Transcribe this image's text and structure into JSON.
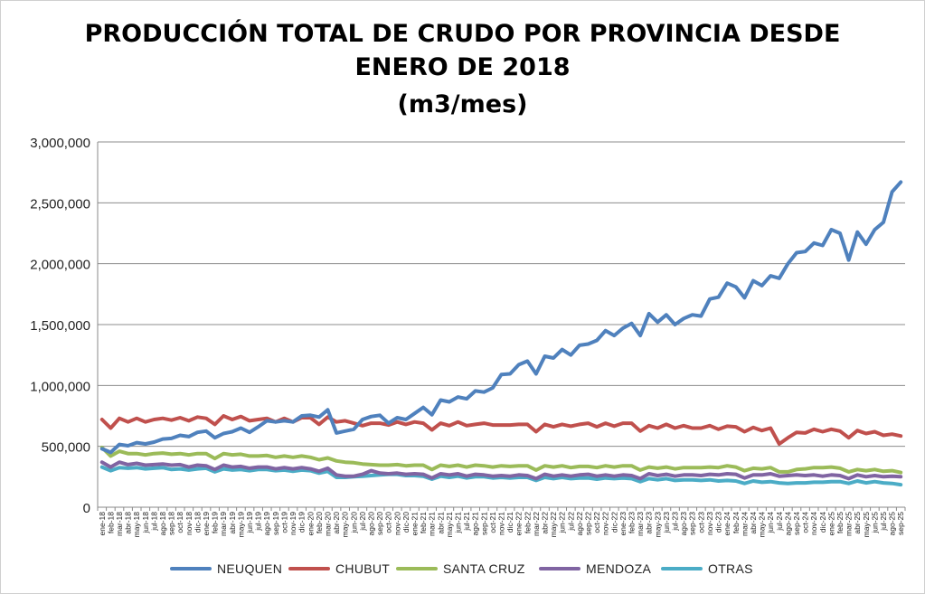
{
  "chart_data": {
    "type": "line",
    "title_lines": [
      "PRODUCCIÓN TOTAL DE CRUDO POR PROVINCIA DESDE",
      "ENERO DE 2018",
      "(m3/mes)"
    ],
    "ylim": [
      0,
      3000000
    ],
    "yticks": [
      "0",
      "500,000",
      "1,000,000",
      "1,500,000",
      "2,000,000",
      "2,500,000",
      "3,000,000"
    ],
    "grid": "horizontal",
    "legend": "bottom",
    "categories": [
      "ene-18",
      "feb-18",
      "mar-18",
      "abr-18",
      "may-18",
      "jun-18",
      "jul-18",
      "ago-18",
      "sep-18",
      "oct-18",
      "nov-18",
      "dic-18",
      "ene-19",
      "feb-19",
      "mar-19",
      "abr-19",
      "may-19",
      "jun-19",
      "jul-19",
      "ago-19",
      "sep-19",
      "oct-19",
      "nov-19",
      "dic-19",
      "ene-20",
      "feb-20",
      "mar-20",
      "abr-20",
      "may-20",
      "jun-20",
      "jul-20",
      "ago-20",
      "sep-20",
      "oct-20",
      "nov-20",
      "dic-20",
      "ene-21",
      "feb-21",
      "mar-21",
      "abr-21",
      "may-21",
      "jun-21",
      "jul-21",
      "ago-21",
      "sep-21",
      "oct-21",
      "nov-21",
      "dic-21",
      "ene-22",
      "feb-22",
      "mar-22",
      "abr-22",
      "may-22",
      "jun-22",
      "jul-22",
      "ago-22",
      "sep-22",
      "oct-22",
      "nov-22",
      "dic-22",
      "ene-23",
      "feb-23",
      "mar-23",
      "abr-23",
      "may-23",
      "jun-23",
      "jul-23",
      "ago-23",
      "sep-23",
      "oct-23",
      "nov-23",
      "dic-23",
      "ene-24",
      "feb-24",
      "mar-24",
      "abr-24",
      "may-24",
      "jun-24",
      "jul-24",
      "ago-24",
      "sep-24",
      "oct-24",
      "nov-24",
      "dic-24",
      "ene-25",
      "feb-25",
      "mar-25",
      "abr-25",
      "may-25",
      "jun-25",
      "jul-25",
      "ago-25",
      "sep-25"
    ],
    "series": [
      {
        "name": "NEUQUEN",
        "color": "#4f81bd",
        "values": [
          480000,
          450000,
          515000,
          505000,
          530000,
          520000,
          535000,
          560000,
          565000,
          590000,
          580000,
          615000,
          625000,
          570000,
          605000,
          620000,
          650000,
          615000,
          660000,
          710000,
          700000,
          710000,
          700000,
          750000,
          755000,
          740000,
          800000,
          610000,
          625000,
          640000,
          720000,
          745000,
          755000,
          690000,
          735000,
          720000,
          770000,
          820000,
          760000,
          880000,
          865000,
          905000,
          890000,
          955000,
          945000,
          980000,
          1090000,
          1095000,
          1170000,
          1200000,
          1095000,
          1240000,
          1225000,
          1295000,
          1250000,
          1330000,
          1340000,
          1370000,
          1450000,
          1410000,
          1470000,
          1510000,
          1410000,
          1590000,
          1520000,
          1580000,
          1500000,
          1550000,
          1580000,
          1570000,
          1710000,
          1725000,
          1840000,
          1810000,
          1720000,
          1860000,
          1820000,
          1900000,
          1880000,
          2000000,
          2090000,
          2100000,
          2170000,
          2150000,
          2280000,
          2250000,
          2030000,
          2260000,
          2160000,
          2280000,
          2340000,
          2590000,
          2670000
        ]
      },
      {
        "name": "CHUBUT",
        "color": "#c0504d",
        "values": [
          720000,
          650000,
          730000,
          700000,
          730000,
          700000,
          720000,
          730000,
          715000,
          735000,
          710000,
          740000,
          730000,
          680000,
          750000,
          720000,
          745000,
          710000,
          720000,
          730000,
          700000,
          730000,
          700000,
          735000,
          735000,
          680000,
          740000,
          700000,
          710000,
          690000,
          670000,
          690000,
          690000,
          675000,
          700000,
          680000,
          700000,
          690000,
          635000,
          690000,
          670000,
          700000,
          670000,
          680000,
          690000,
          675000,
          675000,
          675000,
          680000,
          680000,
          620000,
          680000,
          660000,
          680000,
          665000,
          680000,
          690000,
          660000,
          690000,
          665000,
          690000,
          690000,
          625000,
          670000,
          650000,
          680000,
          650000,
          670000,
          650000,
          650000,
          670000,
          640000,
          665000,
          660000,
          620000,
          655000,
          630000,
          650000,
          520000,
          570000,
          615000,
          610000,
          640000,
          620000,
          640000,
          625000,
          570000,
          630000,
          605000,
          620000,
          590000,
          600000,
          585000
        ]
      },
      {
        "name": "SANTA CRUZ",
        "color": "#9bbb59",
        "values": [
          490000,
          420000,
          460000,
          440000,
          440000,
          430000,
          440000,
          445000,
          435000,
          440000,
          430000,
          440000,
          440000,
          400000,
          440000,
          430000,
          435000,
          420000,
          420000,
          425000,
          410000,
          420000,
          410000,
          420000,
          410000,
          390000,
          405000,
          380000,
          370000,
          365000,
          355000,
          350000,
          345000,
          345000,
          350000,
          340000,
          345000,
          345000,
          310000,
          345000,
          335000,
          345000,
          330000,
          345000,
          340000,
          330000,
          340000,
          335000,
          340000,
          340000,
          305000,
          340000,
          330000,
          340000,
          325000,
          335000,
          335000,
          325000,
          340000,
          330000,
          340000,
          340000,
          305000,
          330000,
          320000,
          330000,
          315000,
          325000,
          325000,
          325000,
          330000,
          325000,
          340000,
          330000,
          300000,
          320000,
          315000,
          325000,
          290000,
          290000,
          310000,
          315000,
          325000,
          325000,
          330000,
          320000,
          290000,
          310000,
          300000,
          310000,
          295000,
          300000,
          285000
        ]
      },
      {
        "name": "MENDOZA",
        "color": "#8064a2",
        "values": [
          370000,
          330000,
          370000,
          350000,
          360000,
          345000,
          350000,
          355000,
          345000,
          350000,
          330000,
          345000,
          340000,
          310000,
          345000,
          330000,
          335000,
          320000,
          330000,
          330000,
          315000,
          325000,
          315000,
          325000,
          315000,
          295000,
          320000,
          265000,
          255000,
          255000,
          270000,
          300000,
          280000,
          275000,
          280000,
          270000,
          275000,
          270000,
          240000,
          275000,
          265000,
          275000,
          255000,
          270000,
          265000,
          255000,
          260000,
          255000,
          265000,
          260000,
          235000,
          270000,
          255000,
          265000,
          255000,
          265000,
          270000,
          255000,
          265000,
          255000,
          265000,
          260000,
          235000,
          275000,
          260000,
          270000,
          255000,
          265000,
          265000,
          260000,
          270000,
          265000,
          275000,
          270000,
          240000,
          265000,
          265000,
          275000,
          255000,
          260000,
          265000,
          260000,
          265000,
          255000,
          265000,
          260000,
          235000,
          265000,
          250000,
          260000,
          250000,
          255000,
          250000
        ]
      },
      {
        "name": "OTRAS",
        "color": "#4bacc6",
        "values": [
          330000,
          300000,
          325000,
          320000,
          325000,
          315000,
          320000,
          325000,
          310000,
          315000,
          305000,
          315000,
          320000,
          290000,
          315000,
          305000,
          310000,
          300000,
          310000,
          310000,
          300000,
          305000,
          295000,
          305000,
          300000,
          280000,
          295000,
          245000,
          245000,
          250000,
          255000,
          260000,
          265000,
          270000,
          270000,
          260000,
          260000,
          255000,
          230000,
          255000,
          245000,
          255000,
          240000,
          250000,
          250000,
          240000,
          245000,
          240000,
          245000,
          245000,
          220000,
          245000,
          235000,
          245000,
          235000,
          240000,
          240000,
          230000,
          240000,
          235000,
          240000,
          235000,
          210000,
          235000,
          225000,
          235000,
          220000,
          225000,
          225000,
          220000,
          225000,
          215000,
          220000,
          215000,
          195000,
          215000,
          205000,
          210000,
          200000,
          195000,
          200000,
          200000,
          205000,
          205000,
          210000,
          210000,
          195000,
          215000,
          200000,
          210000,
          200000,
          195000,
          185000
        ]
      }
    ]
  }
}
